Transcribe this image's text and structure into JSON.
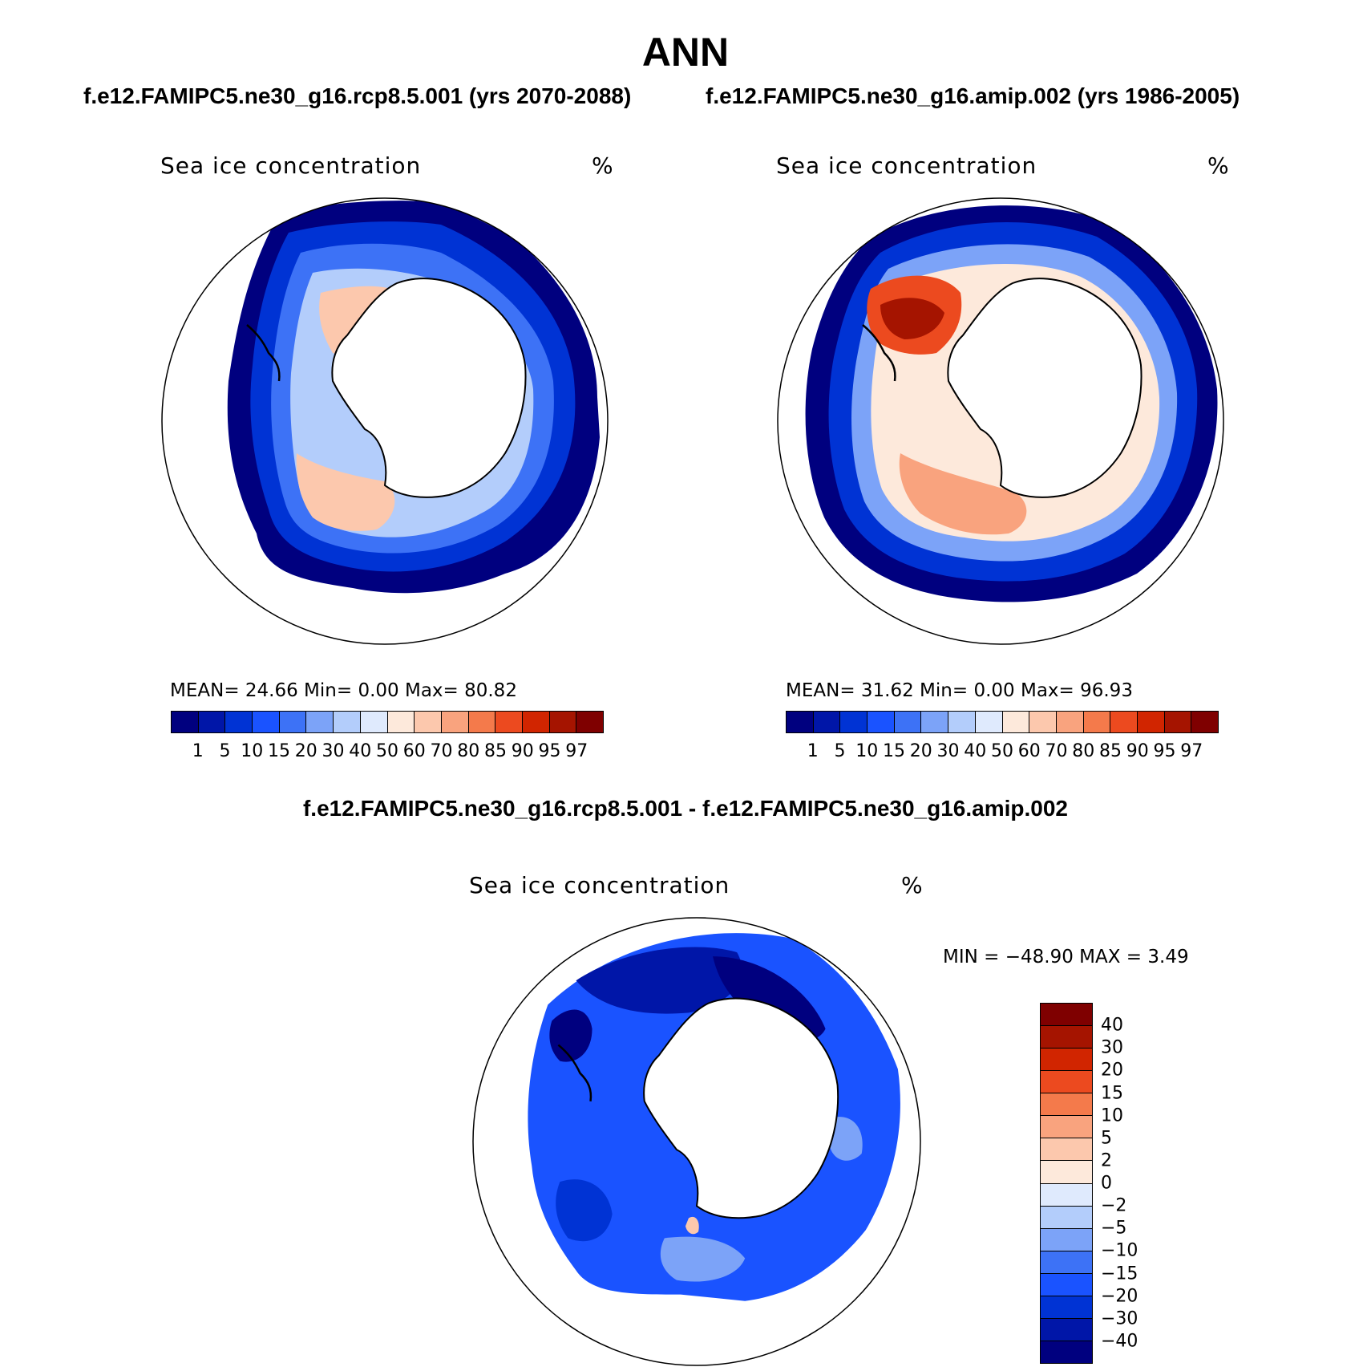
{
  "figure": {
    "title": "ANN",
    "case1_title": "f.e12.FAMIPC5.ne30_g16.rcp8.5.001 (yrs 2070-2088)",
    "case2_title": "f.e12.FAMIPC5.ne30_g16.amip.002 (yrs 1986-2005)",
    "diff_title": "f.e12.FAMIPC5.ne30_g16.rcp8.5.001 - f.e12.FAMIPC5.ne30_g16.amip.002"
  },
  "panels": [
    {
      "variable": "Sea ice concentration",
      "units": "%",
      "stats": "MEAN=   24.66   Min=     0.00   Max=   80.82",
      "mean": 24.66,
      "min": 0.0,
      "max": 80.82,
      "projection": "south-polar-stereographic",
      "contour_levels": [
        "1",
        "5",
        "10",
        "15",
        "20",
        "30",
        "40",
        "50",
        "60",
        "70",
        "80",
        "85",
        "90",
        "95",
        "97"
      ],
      "colors": [
        "#00007f",
        "#0016a8",
        "#0033d4",
        "#1a53ff",
        "#3d72f6",
        "#7ca3f8",
        "#b3cdfb",
        "#dfeafd",
        "#fde9db",
        "#fcc8ad",
        "#f9a37e",
        "#f47a4b",
        "#ec4a1f",
        "#d12500",
        "#a51400",
        "#7f0000"
      ]
    },
    {
      "variable": "Sea ice concentration",
      "units": "%",
      "stats": "MEAN=   31.62   Min=     0.00   Max=   96.93",
      "mean": 31.62,
      "min": 0.0,
      "max": 96.93,
      "projection": "south-polar-stereographic",
      "contour_levels": [
        "1",
        "5",
        "10",
        "15",
        "20",
        "30",
        "40",
        "50",
        "60",
        "70",
        "80",
        "85",
        "90",
        "95",
        "97"
      ],
      "colors": [
        "#00007f",
        "#0016a8",
        "#0033d4",
        "#1a53ff",
        "#3d72f6",
        "#7ca3f8",
        "#b3cdfb",
        "#dfeafd",
        "#fde9db",
        "#fcc8ad",
        "#f9a37e",
        "#f47a4b",
        "#ec4a1f",
        "#d12500",
        "#a51400",
        "#7f0000"
      ]
    }
  ],
  "diff_panel": {
    "variable": "Sea ice concentration",
    "units": "%",
    "stats": "MIN = −48.90 MAX =    3.49",
    "min": -48.9,
    "max": 3.49,
    "contour_levels": [
      "40",
      "30",
      "20",
      "15",
      "10",
      "5",
      "2",
      "0",
      "−2",
      "−5",
      "−10",
      "−15",
      "−20",
      "−30",
      "−40"
    ],
    "colors": [
      "#7f0000",
      "#a51400",
      "#d12500",
      "#ec4a1f",
      "#f47a4b",
      "#f9a37e",
      "#fcc8ad",
      "#fde9db",
      "#dfeafd",
      "#b3cdfb",
      "#7ca3f8",
      "#3d72f6",
      "#1a53ff",
      "#0033d4",
      "#0016a8",
      "#00007f"
    ]
  },
  "map_colors": {
    "land": "#ffffff",
    "coast": "#000000",
    "outline": "#000000"
  }
}
